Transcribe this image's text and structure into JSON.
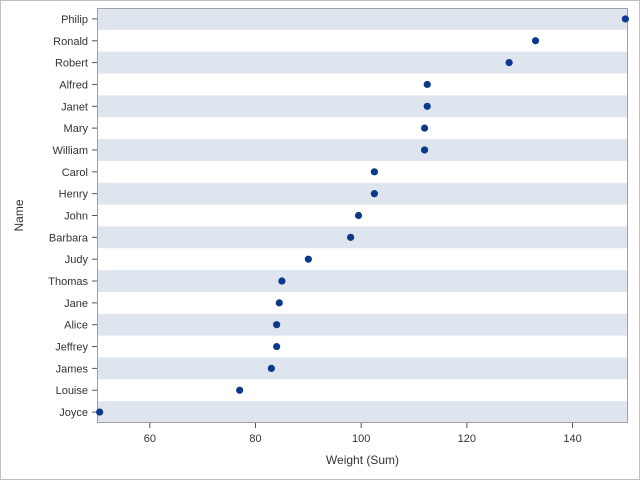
{
  "chart_data": {
    "type": "scatter",
    "style": "dot-plot",
    "xlabel": "Weight (Sum)",
    "ylabel": "Name",
    "xlim": [
      50,
      150.5
    ],
    "xticks": [
      60,
      80,
      100,
      120,
      140
    ],
    "grid": false,
    "alternating_row_bands": true,
    "band_color": "#dfe5ef",
    "marker_color": "#0b3a8c",
    "categories": [
      "Philip",
      "Ronald",
      "Robert",
      "Alfred",
      "Janet",
      "Mary",
      "William",
      "Carol",
      "Henry",
      "John",
      "Barbara",
      "Judy",
      "Thomas",
      "Jane",
      "Alice",
      "Jeffrey",
      "James",
      "Louise",
      "Joyce"
    ],
    "values": [
      150,
      133,
      128,
      112.5,
      112.5,
      112,
      112,
      102.5,
      102.5,
      99.5,
      98,
      90,
      85,
      84.5,
      84,
      84,
      83,
      77,
      50.5
    ]
  }
}
